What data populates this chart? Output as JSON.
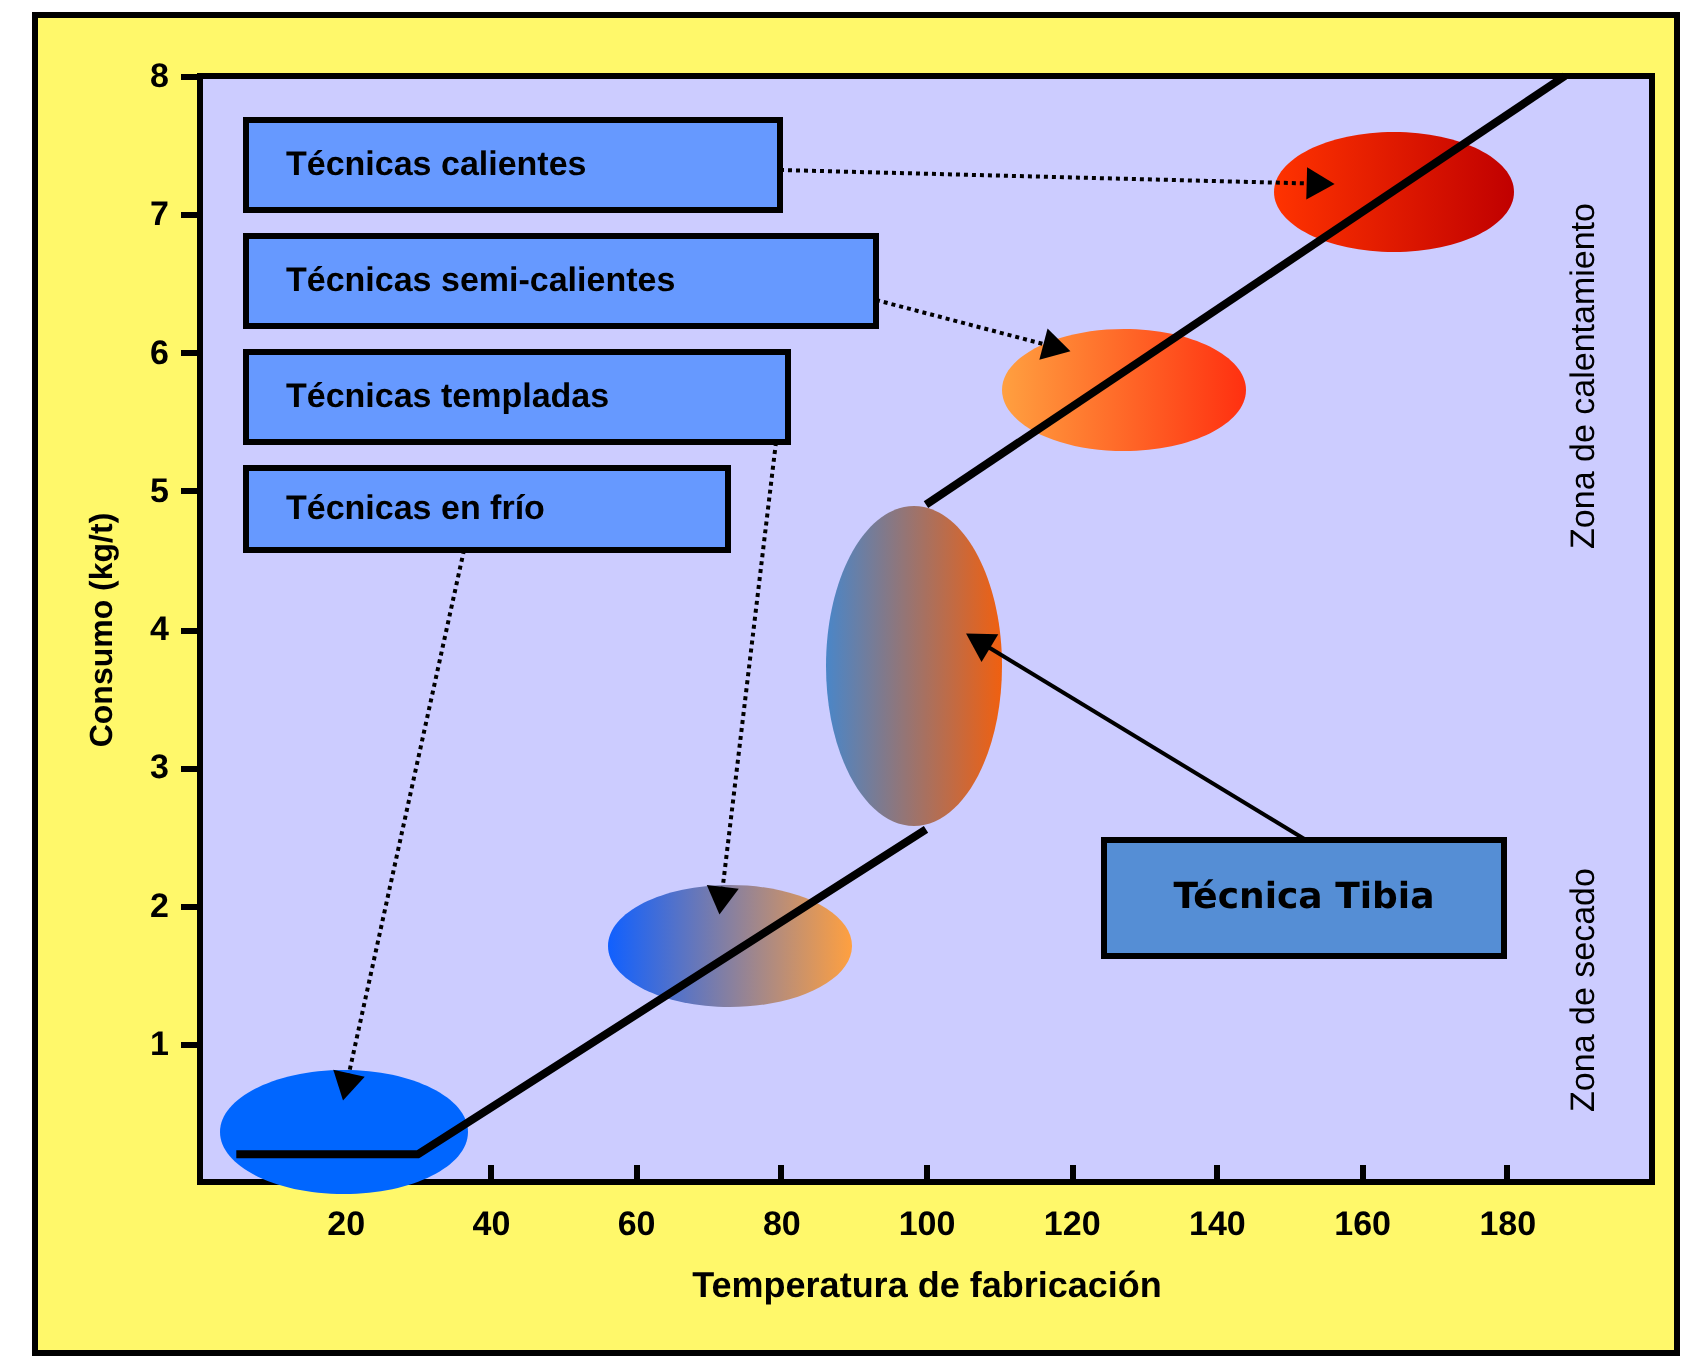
{
  "chart_data": {
    "type": "line",
    "xlabel": "Temperatura de fabricación",
    "ylabel": "Consumo (kg/t)",
    "xlim": [
      0,
      200
    ],
    "ylim": [
      0,
      8
    ],
    "xticks": [
      20,
      40,
      60,
      80,
      100,
      120,
      140,
      160,
      180
    ],
    "yticks": [
      1,
      2,
      3,
      4,
      5,
      6,
      7,
      8
    ],
    "series": [
      {
        "color": "#000000",
        "x": [
          5,
          30,
          100
        ],
        "values": [
          0.2,
          0.2,
          2.55
        ]
      },
      {
        "color": "#000000",
        "x": [
          100,
          188
        ],
        "values": [
          4.9,
          8
        ]
      }
    ],
    "annotations": [
      "Técnicas calientes",
      "Técnicas semi-calientes",
      "Técnicas templadas",
      "Técnicas en  frío",
      "Técnica Tibia",
      "Zona de calentamiento",
      "Zona de secado"
    ]
  }
}
